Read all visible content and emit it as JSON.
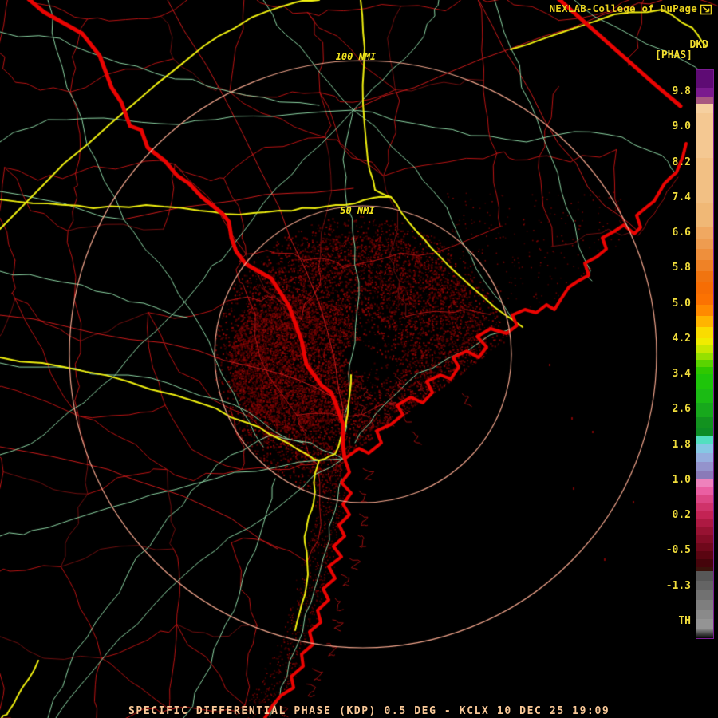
{
  "header": {
    "attribution": "NEXLAB-College of DuPage",
    "product_code": "DKD",
    "product_units": "[PHAS]"
  },
  "range_rings": {
    "label_100": "100 NMI",
    "label_50": "50 NMI"
  },
  "colorbar": {
    "border_color": "#7c1c94",
    "tick_top_y": 115,
    "tick_step_y": 44.25,
    "tick_labels": [
      "9.8",
      "9.0",
      "8.2",
      "7.4",
      "6.6",
      "5.8",
      "5.0",
      "4.2",
      "3.4",
      "2.6",
      "1.8",
      "1.0",
      "0.2",
      "-0.5",
      "-1.3",
      "TH"
    ],
    "segments": [
      [
        "#5e0b74",
        22
      ],
      [
        "#7a1a8e",
        11
      ],
      [
        "#a85880",
        9
      ],
      [
        "#f6d0a0",
        12
      ],
      [
        "#f4c892",
        56
      ],
      [
        "#f2c084",
        57
      ],
      [
        "#f0b876",
        30
      ],
      [
        "#f0a861",
        14
      ],
      [
        "#ee9c50",
        13
      ],
      [
        "#ee8f3c",
        14
      ],
      [
        "#ef8226",
        14
      ],
      [
        "#f07410",
        14
      ],
      [
        "#f66d04",
        14
      ],
      [
        "#fb7202",
        14
      ],
      [
        "#ff8a00",
        14
      ],
      [
        "#ffb400",
        14
      ],
      [
        "#fadc00",
        14
      ],
      [
        "#f0ec00",
        9
      ],
      [
        "#c8e800",
        9
      ],
      [
        "#96e000",
        9
      ],
      [
        "#5ad400",
        9
      ],
      [
        "#2fc800",
        9
      ],
      [
        "#1ec50a",
        18
      ],
      [
        "#1bbb14",
        18
      ],
      [
        "#17a81c",
        18
      ],
      [
        "#12921f",
        14
      ],
      [
        "#0d8c24",
        9
      ],
      [
        "#52dfc0",
        11
      ],
      [
        "#86c8e4",
        11
      ],
      [
        "#96aede",
        11
      ],
      [
        "#9493cc",
        11
      ],
      [
        "#8a7ab8",
        11
      ],
      [
        "#ee82bc",
        10
      ],
      [
        "#ea5fa2",
        10
      ],
      [
        "#dc4684",
        10
      ],
      [
        "#cf336a",
        10
      ],
      [
        "#c32354",
        10
      ],
      [
        "#ad1942",
        10
      ],
      [
        "#971232",
        10
      ],
      [
        "#830c26",
        10
      ],
      [
        "#6f081b",
        10
      ],
      [
        "#5a0511",
        10
      ],
      [
        "#45040b",
        10
      ],
      [
        "#3a120b",
        5
      ],
      [
        "#575757",
        12
      ],
      [
        "#646464",
        12
      ],
      [
        "#717171",
        12
      ],
      [
        "#7e7e7e",
        12
      ],
      [
        "#8a8a8a",
        12
      ],
      [
        "#949494",
        12
      ],
      [
        "GRAD",
        12
      ]
    ]
  },
  "status_bar": {
    "text": "SPECIFIC DIFFERENTIAL PHASE (KDP) 0.5 DEG - KCLX 10 DEC 25 19:09"
  },
  "map": {
    "background": "#000000",
    "county_line_color": "#bb1414",
    "county_line_dark": "#701010",
    "road_color": "#8ed8a6",
    "red_road_color": "#cf1c1c",
    "marsh_color": "#9c1010",
    "highway_color": "#efef10",
    "border_river_color": "#ea0402",
    "range_ring_color": "#f2a58c",
    "echo_colors": [
      "#3c0101",
      "#560202",
      "#6f0303",
      "#8c0606"
    ],
    "ocean_speck_color": "#7a0404",
    "label_color": "#f0dc3c",
    "status_text_color": "#f9c897"
  }
}
